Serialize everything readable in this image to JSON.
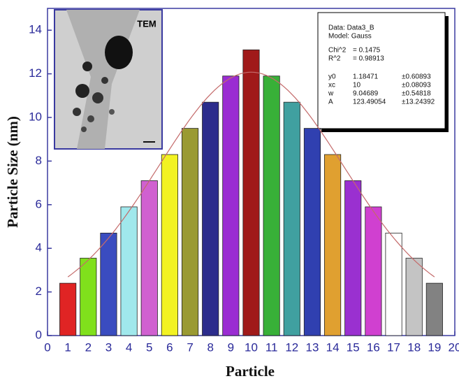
{
  "chart_data": {
    "type": "bar",
    "x_label": "Particle",
    "y_label": "Particle Size (nm)",
    "x": [
      1,
      2,
      3,
      4,
      5,
      6,
      7,
      8,
      9,
      10,
      11,
      12,
      13,
      14,
      15,
      16,
      17,
      18,
      19
    ],
    "values": [
      2.4,
      3.55,
      4.7,
      5.9,
      7.1,
      8.3,
      9.5,
      10.7,
      11.9,
      13.1,
      11.9,
      10.7,
      9.5,
      8.3,
      7.1,
      5.9,
      4.7,
      3.55,
      2.4
    ],
    "colors": [
      "#e02424",
      "#80e01c",
      "#3a4cc0",
      "#a0e8ec",
      "#d060d0",
      "#f2f222",
      "#9a9a32",
      "#2c2c8c",
      "#9a2cd2",
      "#a01a1a",
      "#38b038",
      "#40a0a0",
      "#3040b0",
      "#e0a030",
      "#9a30d0",
      "#d040d0",
      "#ffffff",
      "#c4c4c4",
      "#828282"
    ],
    "xlim": [
      0,
      20
    ],
    "ylim": [
      0,
      15
    ],
    "xticks": [
      0,
      1,
      2,
      3,
      4,
      5,
      6,
      7,
      8,
      9,
      10,
      11,
      12,
      13,
      14,
      15,
      16,
      17,
      18,
      19,
      20
    ],
    "yticks": [
      0,
      2,
      4,
      6,
      8,
      10,
      12,
      14
    ],
    "fit": {
      "color": "#c46a6a",
      "data": "Data: Data3_B",
      "model": "Model: Gauss",
      "stats": [
        {
          "name": "Chi^2",
          "value": "= 0.1475"
        },
        {
          "name": "R^2",
          "value": "= 0.98913"
        }
      ],
      "params": [
        {
          "name": "y0",
          "value": 1.18471,
          "error": "±0.60893"
        },
        {
          "name": "xc",
          "value": 10,
          "error": "±0.08093"
        },
        {
          "name": "w",
          "value": 9.04689,
          "error": "±0.54818"
        },
        {
          "name": "A",
          "value": 123.49054,
          "error": "±13.24392"
        }
      ]
    },
    "inset_label": "TEM"
  }
}
